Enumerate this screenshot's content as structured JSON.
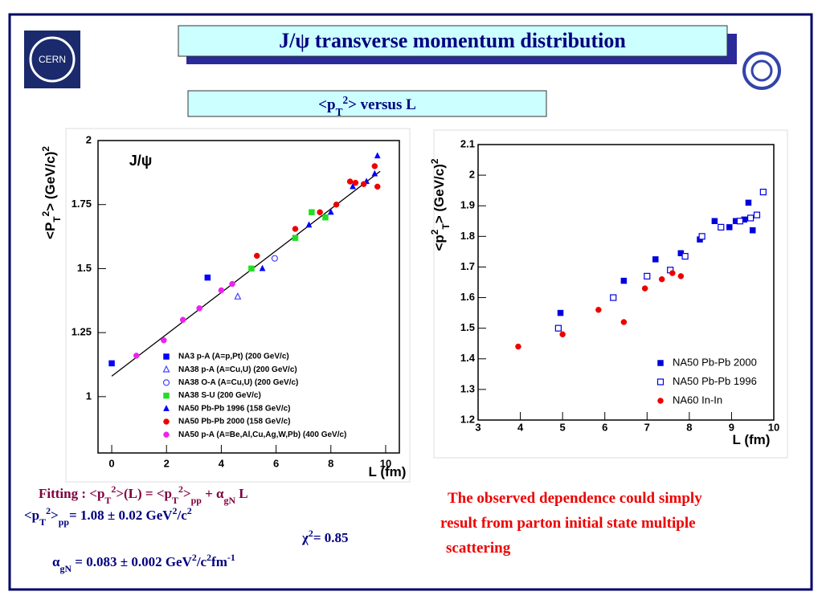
{
  "logo": "CERN",
  "title": "J/ψ  transverse momentum distribution",
  "subtitle": [
    {
      "text": "<p"
    },
    {
      "text": "T",
      "script": "sub"
    },
    {
      "text": "2",
      "script": "sup"
    },
    {
      "text": "> versus L"
    }
  ],
  "chart_data": [
    {
      "type": "scatter",
      "annotation": "J/ψ",
      "x_label": "L (fm)",
      "y_label": [
        {
          "text": "<P"
        },
        {
          "text": "T",
          "script": "sub"
        },
        {
          "text": "2",
          "script": "sup"
        },
        {
          "text": "> (GeV/c)"
        },
        {
          "text": "2",
          "script": "sup"
        }
      ],
      "xlim": [
        -0.5,
        10.5
      ],
      "ylim": [
        0.78,
        2.0
      ],
      "xticks": [
        0,
        2,
        4,
        6,
        8,
        10
      ],
      "yticks": [
        1,
        1.25,
        1.5,
        1.75,
        2
      ],
      "legend": "lower right",
      "fit_line": {
        "color": "#000000",
        "x": [
          0,
          9.8
        ],
        "values": [
          1.08,
          1.88
        ]
      },
      "series": [
        {
          "name": "NA3 p-A (A=p,Pt) (200 GeV/c)",
          "color": "#0000ff",
          "marker": "square",
          "x": [
            0,
            3.5
          ],
          "values": [
            1.13,
            1.465
          ]
        },
        {
          "name": "NA38 p-A (A=Cu,U) (200 GeV/c)",
          "color": "#4444ff",
          "marker": "open-triangle",
          "x": [
            4.6
          ],
          "values": [
            1.39
          ]
        },
        {
          "name": "NA38 O-A (A=Cu,U) (200 GeV/c)",
          "color": "#4444ff",
          "marker": "open-circle",
          "x": [
            5.95
          ],
          "values": [
            1.54
          ]
        },
        {
          "name": "NA38 S-U (200 GeV/c)",
          "color": "#22dd22",
          "marker": "square",
          "x": [
            5.1,
            6.7,
            7.3,
            7.8
          ],
          "values": [
            1.5,
            1.62,
            1.72,
            1.7
          ]
        },
        {
          "name": "NA50 Pb-Pb 1996 (158 GeV/c)",
          "color": "#0000ff",
          "marker": "triangle",
          "x": [
            5.5,
            7.2,
            8.0,
            8.8,
            9.3,
            9.6,
            9.7
          ],
          "values": [
            1.5,
            1.67,
            1.72,
            1.82,
            1.84,
            1.87,
            1.94
          ]
        },
        {
          "name": "NA50 Pb-Pb 2000 (158 GeV/c)",
          "color": "#ee0000",
          "marker": "circle",
          "x": [
            5.3,
            6.7,
            7.6,
            8.2,
            8.7,
            8.9,
            9.2,
            9.6,
            9.7
          ],
          "values": [
            1.55,
            1.655,
            1.72,
            1.75,
            1.84,
            1.835,
            1.83,
            1.9,
            1.82
          ]
        },
        {
          "name": "NA50  p-A (A=Be,Al,Cu,Ag,W,Pb) (400 GeV/c)",
          "color": "#ee22ee",
          "marker": "circle",
          "x": [
            0.9,
            1.9,
            2.6,
            3.2,
            4.0,
            4.4
          ],
          "values": [
            1.16,
            1.22,
            1.3,
            1.345,
            1.415,
            1.44
          ]
        }
      ]
    },
    {
      "type": "scatter",
      "x_label": "L (fm)",
      "y_label": [
        {
          "text": "<p"
        },
        {
          "text": "2",
          "script": "sup"
        },
        {
          "text": "T",
          "script": "sub"
        },
        {
          "text": "> (GeV/c)"
        },
        {
          "text": "2",
          "script": "sup"
        }
      ],
      "xlim": [
        3,
        10
      ],
      "ylim": [
        1.2,
        2.1
      ],
      "xticks": [
        3,
        4,
        5,
        6,
        7,
        8,
        9,
        10
      ],
      "yticks": [
        1.2,
        1.3,
        1.4,
        1.5,
        1.6,
        1.7,
        1.8,
        1.9,
        2,
        2.1
      ],
      "legend": "lower right",
      "series": [
        {
          "name": "NA50 Pb-Pb 2000",
          "color": "#0000dd",
          "marker": "square",
          "x": [
            4.95,
            6.45,
            7.2,
            7.8,
            8.25,
            8.6,
            8.95,
            9.1,
            9.3,
            9.4,
            9.5
          ],
          "values": [
            1.55,
            1.655,
            1.725,
            1.745,
            1.79,
            1.85,
            1.83,
            1.85,
            1.855,
            1.91,
            1.82
          ]
        },
        {
          "name": "NA50 Pb-Pb 1996",
          "color": "#0000dd",
          "marker": "open-square",
          "x": [
            4.9,
            6.2,
            7.0,
            7.55,
            7.9,
            8.3,
            8.75,
            9.2,
            9.45,
            9.6,
            9.75
          ],
          "values": [
            1.5,
            1.6,
            1.67,
            1.69,
            1.735,
            1.8,
            1.83,
            1.85,
            1.86,
            1.87,
            1.945
          ]
        },
        {
          "name": "NA60 In-In",
          "color": "#ee0000",
          "marker": "circle",
          "x": [
            3.95,
            5.0,
            5.85,
            6.45,
            6.95,
            7.35,
            7.6,
            7.8
          ],
          "values": [
            1.44,
            1.48,
            1.56,
            1.52,
            1.63,
            1.66,
            1.68,
            1.67
          ]
        }
      ]
    }
  ],
  "formulas": [
    [
      {
        "text": "Fitting : <p"
      },
      {
        "text": "T",
        "script": "sub"
      },
      {
        "text": "2",
        "script": "sup"
      },
      {
        "text": ">(L) = <p"
      },
      {
        "text": "T",
        "script": "sub"
      },
      {
        "text": "2",
        "script": "sup"
      },
      {
        "text": ">"
      },
      {
        "text": "pp",
        "script": "sub"
      },
      {
        "text": " + α"
      },
      {
        "text": "gN",
        "script": "sub"
      },
      {
        "text": " L"
      }
    ],
    [
      {
        "text": "<p"
      },
      {
        "text": "T",
        "script": "sub"
      },
      {
        "text": "2",
        "script": "sup"
      },
      {
        "text": ">"
      },
      {
        "text": "pp",
        "script": "sub"
      },
      {
        "text": "= 1.08   ±  0.02  GeV"
      },
      {
        "text": "2",
        "script": "sup"
      },
      {
        "text": "/c"
      },
      {
        "text": "2",
        "script": "sup"
      }
    ],
    [
      {
        "text": "χ"
      },
      {
        "text": "2",
        "script": "sup"
      },
      {
        "text": "= 0.85"
      }
    ],
    [
      {
        "text": "α"
      },
      {
        "text": "gN",
        "script": "sub"
      },
      {
        "text": "  =   0.083 ±  0.002  GeV"
      },
      {
        "text": "2",
        "script": "sup"
      },
      {
        "text": "/c"
      },
      {
        "text": "2",
        "script": "sup"
      },
      {
        "text": "fm"
      },
      {
        "text": "-1",
        "script": "sup"
      }
    ]
  ],
  "conclusion": [
    "The observed dependence could simply",
    "result from parton initial  state multiple",
    " scattering"
  ]
}
